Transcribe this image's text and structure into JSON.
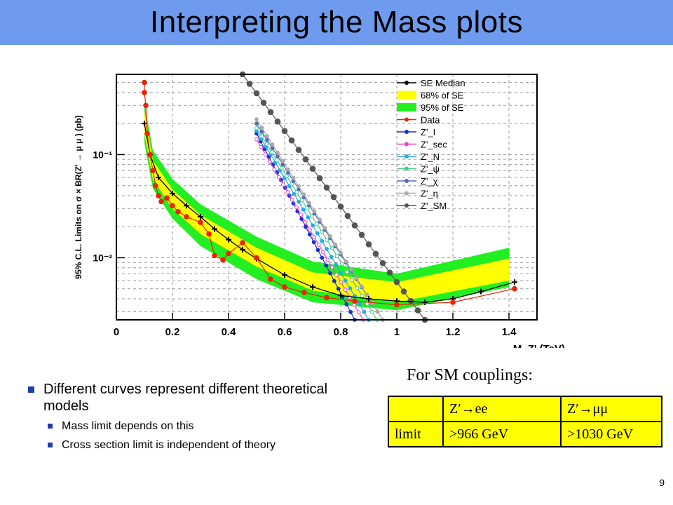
{
  "slide": {
    "title": "Interpreting the Mass plots",
    "page_number": "9"
  },
  "bullets": {
    "main": "Different curves represent different theoretical models",
    "sub": [
      "Mass limit depends on this",
      "Cross section limit is independent of theory"
    ]
  },
  "couplings": {
    "heading": "For SM couplings:",
    "header": [
      "",
      "Z′→ee",
      "Z′→μμ"
    ],
    "row": [
      "limit",
      ">966 GeV",
      ">1030 GeV"
    ]
  },
  "chart_data": {
    "type": "line",
    "ylabel": "95% C.L. Limits on σ × BR(Z' → μ μ ) (pb)",
    "xlabel": "M_Z' (TeV)",
    "xlim": [
      0,
      1.5
    ],
    "ylim": [
      0.0025,
      0.6
    ],
    "yscale": "log",
    "x_ticks": [
      "0",
      "0.2",
      "0.4",
      "0.6",
      "0.8",
      "1",
      "1.2",
      "1.4"
    ],
    "y_ticks": [
      "10⁻¹",
      "10⁻²"
    ],
    "grid": true,
    "legend_position": "top-right",
    "colors": {
      "band95": "#22ee22",
      "band68": "#ffff00",
      "median": "#000000",
      "data": "#ee2200",
      "Z'_I": "#1a2bd6",
      "Z'_sec": "#ee44cc",
      "Z'_N": "#22aaee",
      "Z'_psi": "#44cc88",
      "Z'_chi": "#5566bb",
      "Z'_eta": "#aaaaaa",
      "Z'_SM": "#555555"
    },
    "legend": [
      "SE Median",
      "68% of SE",
      "95% of SE",
      "Data",
      "Z'_I",
      "Z'_sec",
      "Z'_N",
      "Z'_ψ",
      "Z'_χ",
      "Z'_η",
      "Z'_SM"
    ],
    "bands": {
      "x": [
        0.1,
        0.13,
        0.2,
        0.3,
        0.5,
        0.7,
        1.0,
        1.4
      ],
      "p2_upper": [
        0.32,
        0.11,
        0.058,
        0.033,
        0.016,
        0.0092,
        0.007,
        0.0125
      ],
      "p1_upper": [
        0.26,
        0.088,
        0.046,
        0.026,
        0.0125,
        0.0072,
        0.0058,
        0.0098
      ],
      "p1_lower": [
        0.16,
        0.058,
        0.03,
        0.017,
        0.0082,
        0.0048,
        0.0037,
        0.006
      ],
      "p2_lower": [
        0.13,
        0.047,
        0.024,
        0.013,
        0.0062,
        0.0037,
        0.0031,
        0.0052
      ]
    },
    "series": [
      {
        "name": "SE Median",
        "x": [
          0.1,
          0.12,
          0.15,
          0.2,
          0.25,
          0.3,
          0.35,
          0.4,
          0.45,
          0.5,
          0.6,
          0.7,
          0.8,
          0.9,
          1.0,
          1.1,
          1.2,
          1.3,
          1.42
        ],
        "y": [
          0.2,
          0.1,
          0.06,
          0.042,
          0.032,
          0.025,
          0.019,
          0.015,
          0.012,
          0.0098,
          0.0068,
          0.0052,
          0.0043,
          0.004,
          0.0038,
          0.0037,
          0.004,
          0.0047,
          0.0058
        ]
      },
      {
        "name": "Data",
        "x": [
          0.1,
          0.1,
          0.105,
          0.11,
          0.12,
          0.13,
          0.14,
          0.15,
          0.16,
          0.18,
          0.2,
          0.22,
          0.25,
          0.3,
          0.33,
          0.35,
          0.38,
          0.4,
          0.45,
          0.5,
          0.55,
          0.6,
          0.67,
          0.75,
          0.85,
          1.0,
          1.2,
          1.42
        ],
        "y": [
          0.5,
          0.4,
          0.3,
          0.16,
          0.1,
          0.07,
          0.05,
          0.04,
          0.035,
          0.038,
          0.032,
          0.028,
          0.025,
          0.022,
          0.017,
          0.0105,
          0.0095,
          0.011,
          0.014,
          0.01,
          0.0062,
          0.0052,
          0.0046,
          0.0041,
          0.0038,
          0.0035,
          0.0037,
          0.005
        ]
      },
      {
        "name": "Z'_I",
        "x": [
          0.5,
          0.85
        ],
        "y": [
          0.16,
          0.0025
        ]
      },
      {
        "name": "Z'_sec",
        "x": [
          0.5,
          0.88
        ],
        "y": [
          0.14,
          0.0025
        ]
      },
      {
        "name": "Z'_N",
        "x": [
          0.5,
          0.9
        ],
        "y": [
          0.17,
          0.0025
        ]
      },
      {
        "name": "Z'_ψ",
        "x": [
          0.5,
          0.93
        ],
        "y": [
          0.18,
          0.0025
        ]
      },
      {
        "name": "Z'_χ",
        "x": [
          0.5,
          0.95
        ],
        "y": [
          0.2,
          0.0025
        ]
      },
      {
        "name": "Z'_η",
        "x": [
          0.5,
          0.95
        ],
        "y": [
          0.22,
          0.0025
        ]
      },
      {
        "name": "Z'_SM",
        "x": [
          0.45,
          1.1
        ],
        "y": [
          0.6,
          0.0025
        ]
      }
    ]
  }
}
